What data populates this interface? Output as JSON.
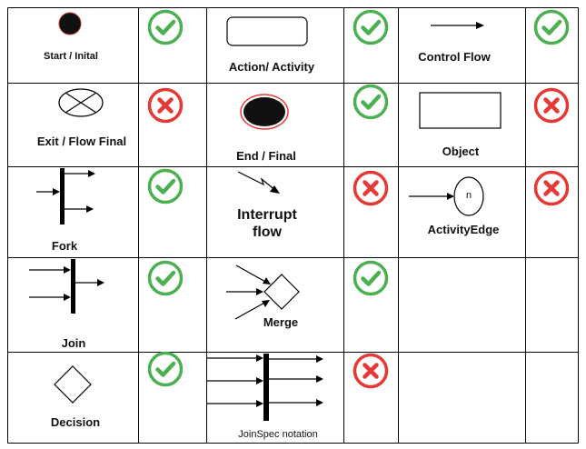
{
  "symbols": {
    "start": "Start / Inital",
    "action": "Action/ Activity",
    "control_flow": "Control Flow",
    "exit_flow_final": "Exit / Flow Final",
    "end_final": "End / Final",
    "object": "Object",
    "fork": "Fork",
    "interrupt_line1": "Interrupt",
    "interrupt_line2": "flow",
    "activity_edge": "ActivityEdge",
    "activity_edge_node": "n",
    "join": "Join",
    "merge": "Merge",
    "decision": "Decision",
    "joinspec": "JoinSpec notation"
  },
  "support": {
    "start": "yes",
    "action": "yes",
    "control_flow": "yes",
    "exit_flow_final": "no",
    "end_final": "yes",
    "object": "no",
    "fork": "yes",
    "interrupt": "no",
    "activity_edge": "no",
    "join": "yes",
    "merge": "yes",
    "decision": "yes",
    "joinspec": "no"
  },
  "colors": {
    "yes": "#4caf50",
    "no": "#e53935",
    "border": "#000000",
    "end_ring": "#e53935"
  },
  "icons": {
    "yes": "check-circle-icon",
    "no": "x-circle-icon"
  }
}
